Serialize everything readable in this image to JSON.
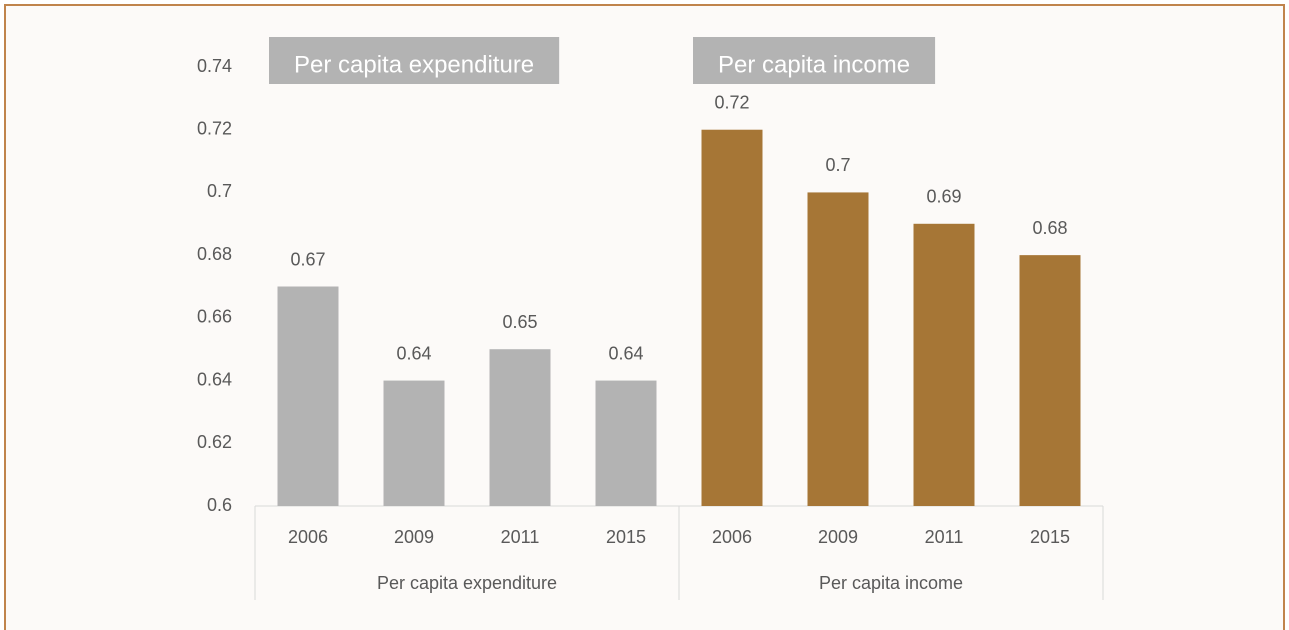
{
  "chart_data": {
    "type": "bar",
    "categories": [
      "2006",
      "2009",
      "2011",
      "2015"
    ],
    "series": [
      {
        "name": "Per capita expenditure",
        "color": "#b3b3b3",
        "values": [
          0.67,
          0.64,
          0.65,
          0.64
        ]
      },
      {
        "name": "Per capita income",
        "color": "#a67636",
        "values": [
          0.72,
          0.7,
          0.69,
          0.68
        ]
      }
    ],
    "ylim": [
      0.6,
      0.74
    ],
    "yticks": [
      0.6,
      0.62,
      0.64,
      0.66,
      0.68,
      0.7,
      0.72,
      0.74
    ],
    "grid": false
  }
}
